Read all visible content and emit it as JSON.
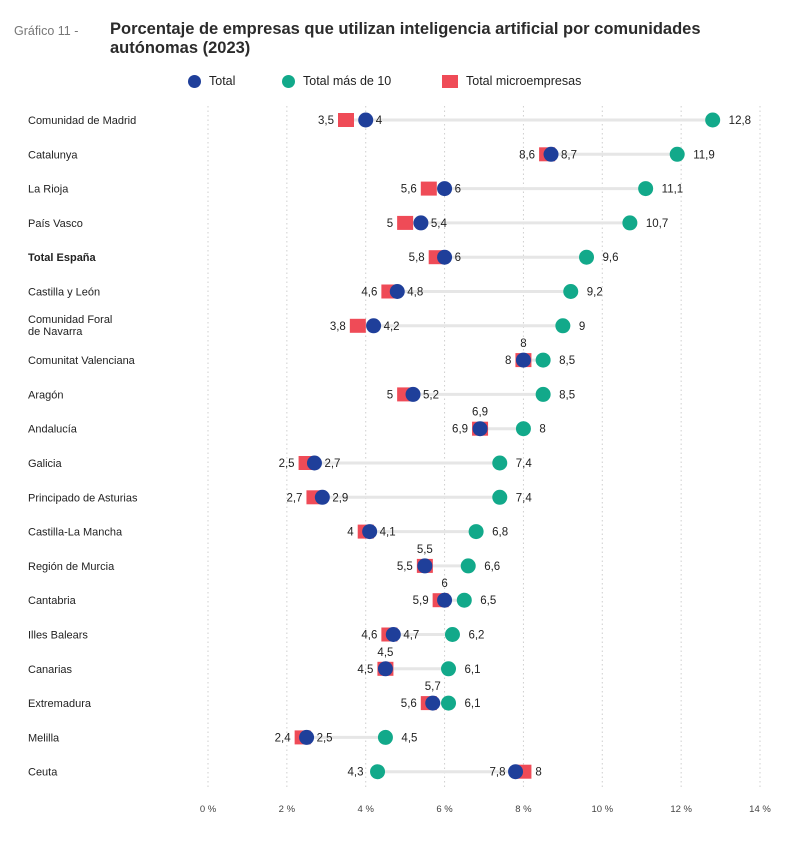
{
  "header": {
    "prefix": "Gráfico 11 -",
    "title": "Porcentaje de empresas que utilizan inteligencia artificial por comunidades autónomas (2023)"
  },
  "legend": {
    "total": "Total",
    "mas10": "Total más de 10",
    "micro": "Total microempresas"
  },
  "colors": {
    "total": "#1f3f9a",
    "mas10": "#12a98a",
    "micro": "#ef4b57",
    "connector": "#e6e6e6",
    "grid": "#cfcfcf"
  },
  "chart_data": {
    "type": "scatter",
    "title": "Porcentaje de empresas que utilizan inteligencia artificial por comunidades autónomas (2023)",
    "xlim": [
      0,
      14
    ],
    "xticks": [
      0,
      2,
      4,
      6,
      8,
      10,
      12,
      14
    ],
    "xtick_labels": [
      "0 %",
      "2 %",
      "4 %",
      "6 %",
      "8 %",
      "10 %",
      "12 %",
      "14 %"
    ],
    "grid": "vertical dotted",
    "legend_position": "top",
    "categories": [
      {
        "name": "Comunidad de Madrid",
        "bold": false,
        "micro": 3.5,
        "micro_label": "3,5",
        "total": 4,
        "total_label": "4",
        "mas10": 12.8,
        "mas10_label": "12,8"
      },
      {
        "name": "Catalunya",
        "bold": false,
        "micro": 8.6,
        "micro_label": "8,6",
        "total": 8.7,
        "total_label": "8,7",
        "mas10": 11.9,
        "mas10_label": "11,9"
      },
      {
        "name": "La Rioja",
        "bold": false,
        "micro": 5.6,
        "micro_label": "5,6",
        "total": 6,
        "total_label": "6",
        "mas10": 11.1,
        "mas10_label": "11,1"
      },
      {
        "name": "País Vasco",
        "bold": false,
        "micro": 5,
        "micro_label": "5",
        "total": 5.4,
        "total_label": "5,4",
        "mas10": 10.7,
        "mas10_label": "10,7"
      },
      {
        "name": "Total España",
        "bold": true,
        "micro": 5.8,
        "micro_label": "5,8",
        "total": 6,
        "total_label": "6",
        "mas10": 9.6,
        "mas10_label": "9,6"
      },
      {
        "name": "Castilla y León",
        "bold": false,
        "micro": 4.6,
        "micro_label": "4,6",
        "total": 4.8,
        "total_label": "4,8",
        "mas10": 9.2,
        "mas10_label": "9,2"
      },
      {
        "name": "Comunidad Foral de Navarra",
        "bold": false,
        "micro": 3.8,
        "micro_label": "3,8",
        "total": 4.2,
        "total_label": "4,2",
        "mas10": 9,
        "mas10_label": "9"
      },
      {
        "name": "Comunitat Valenciana",
        "bold": false,
        "micro": 8,
        "micro_label": "8",
        "total": 8,
        "total_label": "8",
        "mas10": 8.5,
        "mas10_label": "8,5"
      },
      {
        "name": "Aragón",
        "bold": false,
        "micro": 5,
        "micro_label": "5",
        "total": 5.2,
        "total_label": "5,2",
        "mas10": 8.5,
        "mas10_label": "8,5"
      },
      {
        "name": "Andalucía",
        "bold": false,
        "micro": 6.9,
        "micro_label": "6,9",
        "total": 6.9,
        "total_label": "6,9",
        "mas10": 8,
        "mas10_label": "8"
      },
      {
        "name": "Galicia",
        "bold": false,
        "micro": 2.5,
        "micro_label": "2,5",
        "total": 2.7,
        "total_label": "2,7",
        "mas10": 7.4,
        "mas10_label": "7,4"
      },
      {
        "name": "Principado de Asturias",
        "bold": false,
        "micro": 2.7,
        "micro_label": "2,7",
        "total": 2.9,
        "total_label": "2,9",
        "mas10": 7.4,
        "mas10_label": "7,4"
      },
      {
        "name": "Castilla-La Mancha",
        "bold": false,
        "micro": 4,
        "micro_label": "4",
        "total": 4.1,
        "total_label": "4,1",
        "mas10": 6.8,
        "mas10_label": "6,8"
      },
      {
        "name": "Región de Murcia",
        "bold": false,
        "micro": 5.5,
        "micro_label": "5,5",
        "total": 5.5,
        "total_label": "5,5",
        "mas10": 6.6,
        "mas10_label": "6,6"
      },
      {
        "name": "Cantabria",
        "bold": false,
        "micro": 5.9,
        "micro_label": "5,9",
        "total": 6,
        "total_label": "6",
        "mas10": 6.5,
        "mas10_label": "6,5"
      },
      {
        "name": "Illes Balears",
        "bold": false,
        "micro": 4.6,
        "micro_label": "4,6",
        "total": 4.7,
        "total_label": "4,7",
        "mas10": 6.2,
        "mas10_label": "6,2"
      },
      {
        "name": "Canarias",
        "bold": false,
        "micro": 4.5,
        "micro_label": "4,5",
        "total": 4.5,
        "total_label": "4,5",
        "mas10": 6.1,
        "mas10_label": "6,1"
      },
      {
        "name": "Extremadura",
        "bold": false,
        "micro": 5.6,
        "micro_label": "5,6",
        "total": 5.7,
        "total_label": "5,7",
        "mas10": 6.1,
        "mas10_label": "6,1"
      },
      {
        "name": "Melilla",
        "bold": false,
        "micro": 2.4,
        "micro_label": "2,4",
        "total": 2.5,
        "total_label": "2,5",
        "mas10": 4.5,
        "mas10_label": "4,5"
      },
      {
        "name": "Ceuta",
        "bold": false,
        "micro": 8,
        "micro_label": "8",
        "total": 7.8,
        "total_label": "7,8",
        "mas10": 4.3,
        "mas10_label": "4,3"
      }
    ]
  }
}
